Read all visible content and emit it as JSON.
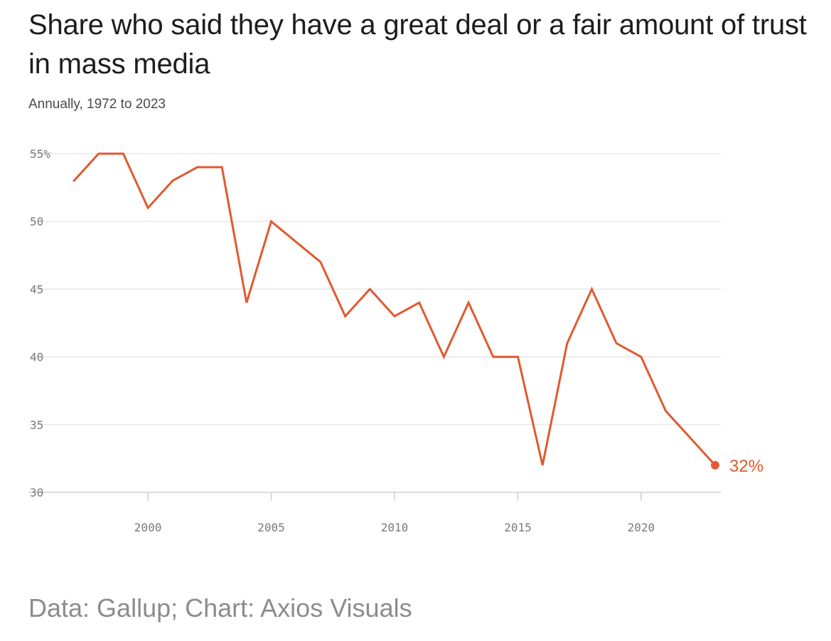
{
  "header": {
    "title": "Share who said they have a great deal or a fair amount of trust in mass media",
    "subtitle": "Annually, 1972 to 2023"
  },
  "footer": {
    "source": "Data: Gallup; Chart: Axios Visuals"
  },
  "colors": {
    "line": "#e05a2f",
    "grid": "#e3e3e3",
    "axis": "#cfcfcf"
  },
  "chart_data": {
    "type": "line",
    "title": "Share who said they have a great deal or a fair amount of trust in mass media",
    "subtitle": "Annually, 1972 to 2023",
    "xlabel": "",
    "ylabel": "",
    "xlim": [
      1997,
      2023
    ],
    "ylim": [
      30,
      55
    ],
    "grid": true,
    "x_ticks": [
      2000,
      2005,
      2010,
      2015,
      2020
    ],
    "x_tick_labels": [
      "2000",
      "2005",
      "2010",
      "2015",
      "2020"
    ],
    "y_ticks": [
      30,
      35,
      40,
      45,
      50,
      55
    ],
    "y_tick_labels": [
      "30",
      "35",
      "40",
      "45",
      "50",
      "55%"
    ],
    "series": [
      {
        "name": "Trust in mass media",
        "x": [
          1997,
          1998,
          1999,
          2000,
          2001,
          2002,
          2003,
          2004,
          2005,
          2006,
          2007,
          2008,
          2009,
          2010,
          2011,
          2012,
          2013,
          2014,
          2015,
          2016,
          2017,
          2018,
          2019,
          2020,
          2021,
          2022,
          2023
        ],
        "values": [
          53,
          55,
          55,
          51,
          53,
          54,
          54,
          44,
          50,
          48.5,
          47,
          43,
          45,
          43,
          44,
          40,
          44,
          40,
          40,
          32,
          41,
          45,
          41,
          40,
          36,
          34,
          32
        ]
      }
    ],
    "end_label": "32%"
  }
}
